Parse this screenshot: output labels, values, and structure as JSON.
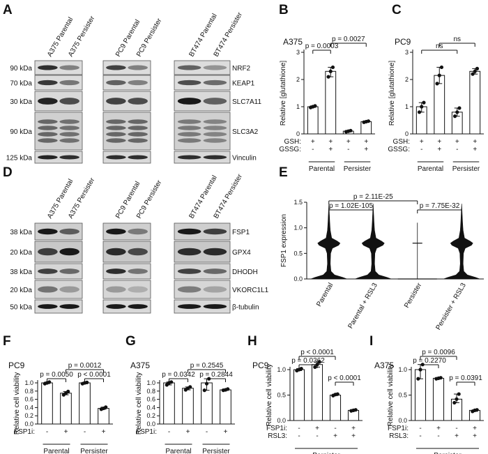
{
  "panels": [
    "A",
    "B",
    "C",
    "D",
    "E",
    "F",
    "G",
    "H",
    "I"
  ],
  "blotA": {
    "lanes": [
      "A375 Parental",
      "A375 Persister",
      "PC9 Parental",
      "PC9 Persister",
      "BT474 Parental",
      "BT474 Persister"
    ],
    "markers": [
      "90 kDa",
      "70 kDa",
      "30 kDa",
      "90 kDa",
      "125 kDa"
    ],
    "proteins": [
      "NRF2",
      "KEAP1",
      "SLC7A11",
      "SLC3A2",
      "Vinculin"
    ]
  },
  "blotD": {
    "lanes": [
      "A375 Parental",
      "A375 Persister",
      "PC9 Parental",
      "PC9 Persister",
      "BT474 Parental",
      "BT474 Persister"
    ],
    "markers": [
      "38 kDa",
      "20 kDa",
      "38 kDa",
      "20 kDa",
      "50 kDa"
    ],
    "proteins": [
      "FSP1",
      "GPX4",
      "DHODH",
      "VKORC1L1",
      "β-tubulin"
    ]
  },
  "chart_data": [
    {
      "panel": "B",
      "type": "bar",
      "title": "A375",
      "ylabel": "Relative [glutathione]",
      "ylim": [
        0,
        3
      ],
      "yticks": [
        0,
        1,
        2,
        3
      ],
      "values": [
        1.0,
        2.3,
        0.1,
        0.45
      ],
      "points": [
        [
          0.97,
          1.0,
          1.03
        ],
        [
          2.1,
          2.3,
          2.45
        ],
        [
          0.08,
          0.1,
          0.12
        ],
        [
          0.43,
          0.45,
          0.47
        ]
      ],
      "rows": [
        {
          "label": "GSH:",
          "values": [
            "+",
            "+",
            "+",
            "+"
          ]
        },
        {
          "label": "GSSG:",
          "values": [
            "-",
            "+",
            "-",
            "+"
          ]
        }
      ],
      "groups": [
        "Parental",
        "Persister"
      ],
      "brackets": [
        {
          "from": 0,
          "to": 1,
          "label": "p = 0.0003"
        },
        {
          "from": 1,
          "to": 3,
          "label": "p = 0.0027"
        }
      ]
    },
    {
      "panel": "C",
      "type": "bar",
      "title": "PC9",
      "ylabel": "Relative [glutathione]",
      "ylim": [
        0,
        3
      ],
      "yticks": [
        0,
        1,
        2,
        3
      ],
      "values": [
        1.0,
        2.15,
        0.8,
        2.3
      ],
      "points": [
        [
          0.8,
          1.0,
          1.15
        ],
        [
          1.85,
          2.15,
          2.45
        ],
        [
          0.65,
          0.8,
          0.95
        ],
        [
          2.2,
          2.3,
          2.4
        ]
      ],
      "rows": [
        {
          "label": "GSH:",
          "values": [
            "+",
            "+",
            "+",
            "+"
          ]
        },
        {
          "label": "GSSG:",
          "values": [
            "-",
            "+",
            "-",
            "+"
          ]
        }
      ],
      "groups": [
        "Parental",
        "Persister"
      ],
      "brackets": [
        {
          "from": 0,
          "to": 2,
          "label": "ns"
        },
        {
          "from": 1,
          "to": 3,
          "label": "ns"
        }
      ]
    },
    {
      "panel": "E",
      "type": "violin",
      "ylabel": "FSP1 expression",
      "ylim": [
        0,
        1.5
      ],
      "yticks": [
        0.0,
        0.5,
        1.0,
        1.5
      ],
      "categories": [
        "Parental",
        "Parental + RSL3",
        "Persister",
        "Persister + RSL3"
      ],
      "brackets": [
        {
          "from": 0,
          "to": 1,
          "label": "p = 1.02E-105"
        },
        {
          "from": 2,
          "to": 3,
          "label": "p = 7.75E-32"
        },
        {
          "from": 0,
          "to": 2,
          "label": "p = 2.11E-25"
        }
      ]
    },
    {
      "panel": "F",
      "type": "bar",
      "title": "PC9",
      "ylabel": "Relative cell viability",
      "ylim": [
        0,
        1.0
      ],
      "yticks": [
        0.0,
        0.2,
        0.4,
        0.6,
        0.8,
        1.0
      ],
      "values": [
        1.0,
        0.75,
        1.0,
        0.38
      ],
      "points": [
        [
          0.98,
          1.0,
          1.02
        ],
        [
          0.71,
          0.75,
          0.79
        ],
        [
          0.98,
          1.0,
          1.01
        ],
        [
          0.36,
          0.38,
          0.41
        ]
      ],
      "rows": [
        {
          "label": "FSP1i:",
          "values": [
            "-",
            "+",
            "-",
            "+"
          ]
        }
      ],
      "groups": [
        "Parental",
        "Persister"
      ],
      "brackets": [
        {
          "from": 0,
          "to": 1,
          "label": "p = 0.0050"
        },
        {
          "from": 2,
          "to": 3,
          "label": "p < 0.0001"
        },
        {
          "from": 1,
          "to": 3,
          "label": "p = 0.0012"
        }
      ]
    },
    {
      "panel": "G",
      "type": "bar",
      "title": "A375",
      "ylabel": "Relative cell viability",
      "ylim": [
        0,
        1.0
      ],
      "yticks": [
        0.0,
        0.2,
        0.4,
        0.6,
        0.8,
        1.0
      ],
      "values": [
        1.0,
        0.87,
        1.0,
        0.83
      ],
      "points": [
        [
          0.95,
          1.0,
          1.02
        ],
        [
          0.83,
          0.87,
          0.9
        ],
        [
          0.82,
          0.98,
          1.1
        ],
        [
          0.82,
          0.83,
          0.85
        ]
      ],
      "rows": [
        {
          "label": "FSP1i:",
          "values": [
            "-",
            "+",
            "-",
            "+"
          ]
        }
      ],
      "groups": [
        "Parental",
        "Persister"
      ],
      "brackets": [
        {
          "from": 0,
          "to": 1,
          "label": "p = 0.0342"
        },
        {
          "from": 2,
          "to": 3,
          "label": "p = 0.2844"
        },
        {
          "from": 1,
          "to": 3,
          "label": "p = 0.2545"
        }
      ]
    },
    {
      "panel": "H",
      "type": "bar",
      "title": "PC9",
      "ylabel": "Relative cell viability",
      "ylim": [
        0,
        1.0
      ],
      "yticks": [
        0.0,
        0.5,
        1.0
      ],
      "values": [
        1.0,
        1.1,
        0.5,
        0.2
      ],
      "points": [
        [
          0.98,
          1.0,
          1.02
        ],
        [
          1.05,
          1.1,
          1.15
        ],
        [
          0.49,
          0.51,
          0.52
        ],
        [
          0.19,
          0.2,
          0.21
        ]
      ],
      "rows": [
        {
          "label": "FSP1i:",
          "values": [
            "-",
            "+",
            "-",
            "+"
          ]
        },
        {
          "label": "RSL3:",
          "values": [
            "-",
            "-",
            "+",
            "+"
          ]
        }
      ],
      "groups": [
        "Persister"
      ],
      "brackets": [
        {
          "from": 0,
          "to": 1,
          "label": "p = 0.0362"
        },
        {
          "from": 2,
          "to": 3,
          "label": "p < 0.0001"
        },
        {
          "from": 0,
          "to": 2,
          "label": "p < 0.0001"
        }
      ]
    },
    {
      "panel": "I",
      "type": "bar",
      "title": "A375",
      "ylabel": "Relative cell viability",
      "ylim": [
        0,
        1.0
      ],
      "yticks": [
        0.0,
        0.5,
        1.0
      ],
      "values": [
        1.0,
        0.83,
        0.42,
        0.2
      ],
      "points": [
        [
          0.82,
          1.0,
          1.1
        ],
        [
          0.82,
          0.83,
          0.84
        ],
        [
          0.35,
          0.42,
          0.52
        ],
        [
          0.18,
          0.2,
          0.21
        ]
      ],
      "rows": [
        {
          "label": "FSP1i:",
          "values": [
            "-",
            "+",
            "-",
            "+"
          ]
        },
        {
          "label": "RSL3:",
          "values": [
            "-",
            "-",
            "+",
            "+"
          ]
        }
      ],
      "groups": [
        "Persister"
      ],
      "brackets": [
        {
          "from": 0,
          "to": 1,
          "label": "p = 0.2270"
        },
        {
          "from": 2,
          "to": 3,
          "label": "p = 0.0391"
        },
        {
          "from": 0,
          "to": 2,
          "label": "p = 0.0096"
        }
      ]
    }
  ]
}
